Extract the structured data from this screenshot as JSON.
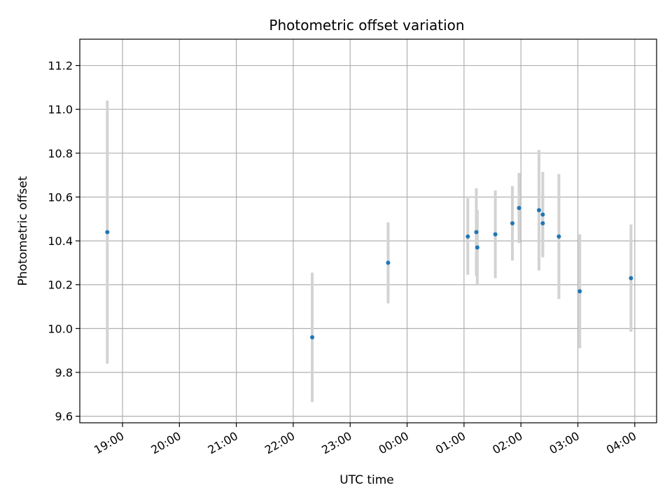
{
  "chart_data": {
    "type": "scatter",
    "title": "Photometric offset variation",
    "xlabel": "UTC time",
    "ylabel": "Photometric offset",
    "grid": true,
    "legend": "none",
    "xlim": [
      "18:15",
      "04:23"
    ],
    "ylim": [
      9.57,
      11.32
    ],
    "x_ticks": [
      "19:00",
      "20:00",
      "21:00",
      "22:00",
      "23:00",
      "00:00",
      "01:00",
      "02:00",
      "03:00",
      "04:00"
    ],
    "y_ticks": [
      "9.6",
      "9.8",
      "10.0",
      "10.2",
      "10.4",
      "10.6",
      "10.8",
      "11.0",
      "11.2"
    ],
    "colors": {
      "point": "#1f77b4",
      "errorbar": "#d3d3d3",
      "grid": "#b0b0b0"
    },
    "series": [
      {
        "points": [
          {
            "x": "18:44",
            "y": 10.44,
            "err": 0.6
          },
          {
            "x": "22:20",
            "y": 9.96,
            "err": 0.295
          },
          {
            "x": "23:40",
            "y": 10.3,
            "err": 0.185
          },
          {
            "x": "01:04",
            "y": 10.42,
            "err": 0.175
          },
          {
            "x": "01:13",
            "y": 10.44,
            "err": 0.2
          },
          {
            "x": "01:14",
            "y": 10.37,
            "err": 0.17
          },
          {
            "x": "01:33",
            "y": 10.43,
            "err": 0.2
          },
          {
            "x": "01:51",
            "y": 10.48,
            "err": 0.17
          },
          {
            "x": "01:58",
            "y": 10.55,
            "err": 0.16
          },
          {
            "x": "02:19",
            "y": 10.54,
            "err": 0.275
          },
          {
            "x": "02:23",
            "y": 10.48,
            "err": 0.15
          },
          {
            "x": "02:23",
            "y": 10.52,
            "err": 0.195
          },
          {
            "x": "02:40",
            "y": 10.42,
            "err": 0.285
          },
          {
            "x": "03:02",
            "y": 10.17,
            "err": 0.26
          },
          {
            "x": "03:56",
            "y": 10.23,
            "err": 0.245
          }
        ]
      }
    ]
  }
}
